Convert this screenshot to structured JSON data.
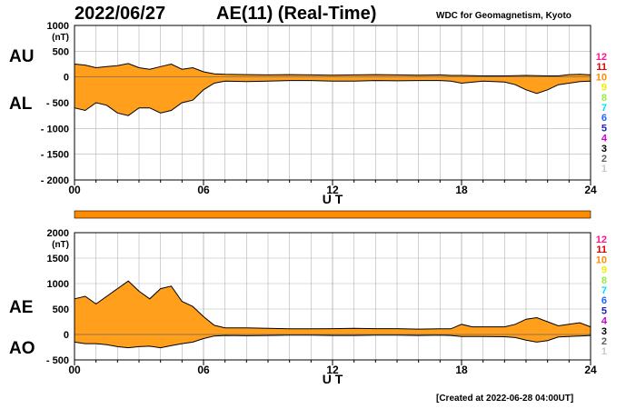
{
  "header": {
    "date": "2022/06/27",
    "title": "AE(11) (Real-Time)",
    "credit": "WDC for Geomagnetism, Kyoto"
  },
  "footer": {
    "created": "[Created at 2022-06-28 04:00UT]"
  },
  "colors": {
    "fill": "#ff9f1c",
    "outline": "#000000",
    "grid": "#b4b4b4"
  },
  "chart_data": [
    {
      "type": "area",
      "side_labels": [
        "AU",
        "AL"
      ],
      "ylabel": "(nT)",
      "xlabel": "U T",
      "xlim": [
        0,
        24
      ],
      "ylim": [
        -2000,
        1000
      ],
      "x_ticks": [
        "00",
        "06",
        "12",
        "18",
        "24"
      ],
      "y_ticks": [
        "1000",
        "500",
        "0",
        "- 500",
        "- 1000",
        "- 1500",
        "- 2000"
      ],
      "grid": true,
      "series": [
        {
          "name": "AU",
          "x": [
            0,
            0.5,
            1,
            1.5,
            2,
            2.5,
            3,
            3.5,
            4,
            4.5,
            5,
            5.5,
            6,
            6.5,
            7,
            8,
            9,
            10,
            11,
            12,
            13,
            14,
            15,
            16,
            17,
            17.5,
            18,
            19,
            20,
            20.5,
            21,
            21.5,
            22,
            22.5,
            23,
            23.5,
            24
          ],
          "y": [
            250,
            230,
            180,
            200,
            220,
            260,
            180,
            150,
            200,
            250,
            150,
            180,
            100,
            60,
            50,
            45,
            40,
            45,
            40,
            35,
            40,
            45,
            40,
            35,
            40,
            30,
            30,
            20,
            20,
            25,
            30,
            25,
            20,
            20,
            45,
            50,
            40
          ]
        },
        {
          "name": "AL",
          "x": [
            0,
            0.5,
            1,
            1.5,
            2,
            2.5,
            3,
            3.5,
            4,
            4.5,
            5,
            5.5,
            6,
            6.5,
            7,
            8,
            9,
            10,
            11,
            12,
            13,
            14,
            15,
            16,
            17,
            17.5,
            18,
            19,
            20,
            20.5,
            21,
            21.5,
            22,
            22.5,
            23,
            23.5,
            24
          ],
          "y": [
            -600,
            -650,
            -500,
            -550,
            -700,
            -750,
            -600,
            -600,
            -700,
            -650,
            -500,
            -450,
            -250,
            -120,
            -80,
            -90,
            -80,
            -70,
            -70,
            -80,
            -80,
            -70,
            -75,
            -70,
            -70,
            -80,
            -120,
            -80,
            -100,
            -150,
            -250,
            -320,
            -250,
            -150,
            -120,
            -90,
            -80
          ]
        }
      ]
    },
    {
      "type": "area",
      "side_labels": [
        "AE",
        "AO"
      ],
      "ylabel": "(nT)",
      "xlabel": "U T",
      "xlim": [
        0,
        24
      ],
      "ylim": [
        -500,
        2000
      ],
      "x_ticks": [
        "00",
        "06",
        "12",
        "18",
        "24"
      ],
      "y_ticks": [
        "2000",
        "1500",
        "1000",
        "500",
        "0",
        "- 500"
      ],
      "grid": true,
      "series": [
        {
          "name": "AE",
          "x": [
            0,
            0.5,
            1,
            1.5,
            2,
            2.5,
            3,
            3.5,
            4,
            4.5,
            5,
            5.5,
            6,
            6.5,
            7,
            8,
            9,
            10,
            11,
            12,
            13,
            14,
            15,
            16,
            17,
            17.5,
            18,
            18.5,
            19,
            20,
            20.5,
            21,
            21.5,
            22,
            22.5,
            23,
            23.5,
            24
          ],
          "y": [
            700,
            750,
            600,
            750,
            900,
            1050,
            850,
            700,
            900,
            950,
            650,
            550,
            350,
            180,
            130,
            130,
            120,
            110,
            110,
            115,
            120,
            115,
            115,
            105,
            110,
            110,
            200,
            150,
            150,
            150,
            200,
            300,
            330,
            250,
            170,
            200,
            230,
            150
          ]
        },
        {
          "name": "AO",
          "x": [
            0,
            0.5,
            1,
            1.5,
            2,
            2.5,
            3,
            3.5,
            4,
            4.5,
            5,
            5.5,
            6,
            6.5,
            7,
            8,
            9,
            10,
            11,
            12,
            13,
            14,
            15,
            16,
            17,
            17.5,
            18,
            18.5,
            19,
            20,
            20.5,
            21,
            21.5,
            22,
            22.5,
            23,
            23.5,
            24
          ],
          "y": [
            -150,
            -180,
            -180,
            -200,
            -240,
            -260,
            -240,
            -230,
            -260,
            -220,
            -180,
            -150,
            -80,
            -30,
            -20,
            -25,
            -20,
            -15,
            -15,
            -20,
            -20,
            -15,
            -15,
            -20,
            -15,
            -20,
            -40,
            -40,
            -40,
            -45,
            -60,
            -110,
            -150,
            -120,
            -50,
            -40,
            -30,
            -20
          ]
        }
      ]
    }
  ],
  "station_count": {
    "legend": [
      "12",
      "11",
      "10",
      "9",
      "8",
      "7",
      "6",
      "5",
      "4",
      "3",
      "2",
      "1"
    ],
    "colors": [
      "#ff1493",
      "#e00000",
      "#ff8c00",
      "#eeee00",
      "#90ee40",
      "#00e0ff",
      "#1e64ff",
      "#2020c0",
      "#d000d0",
      "#000000",
      "#606060",
      "#c8c8c8"
    ],
    "bar_value": "10"
  }
}
